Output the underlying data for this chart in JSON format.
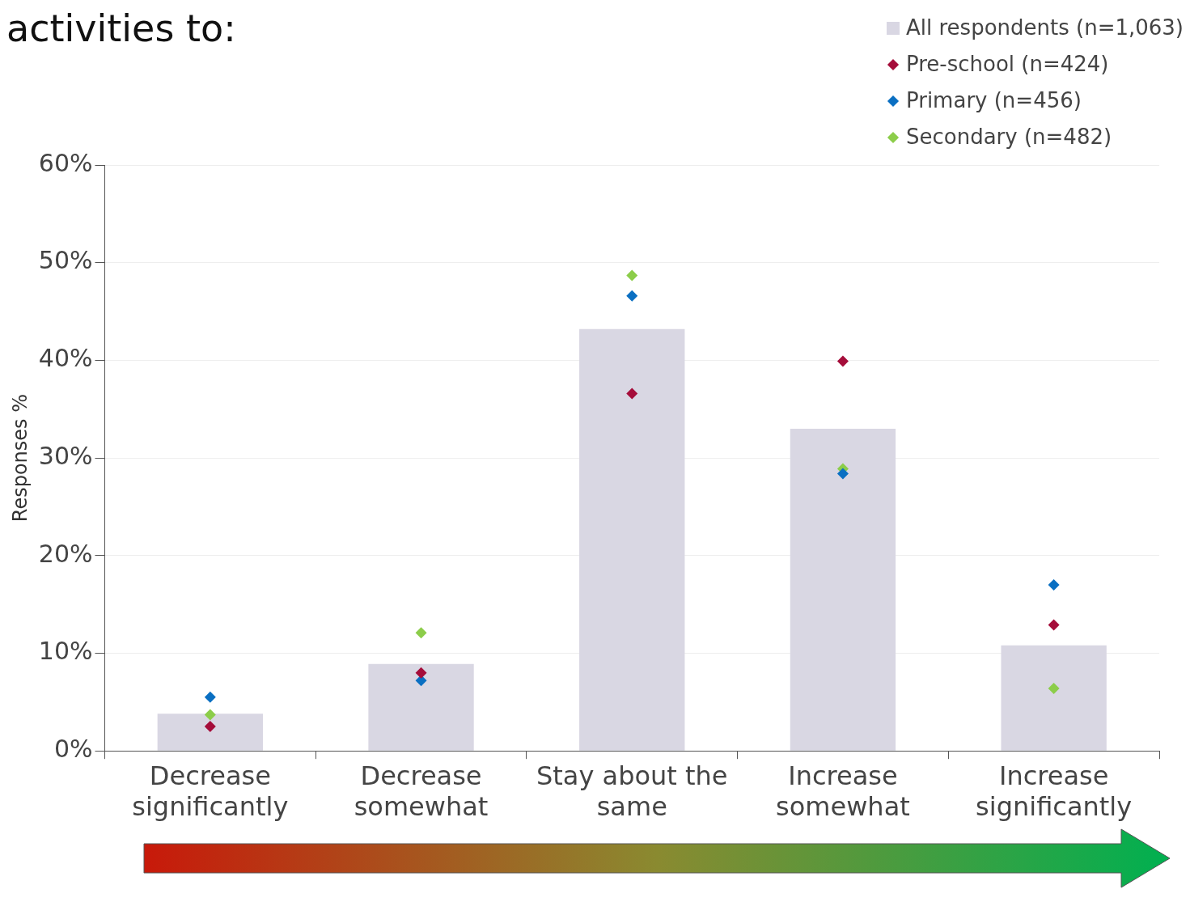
{
  "chart_data": {
    "type": "bar",
    "title": "activities to:",
    "ylabel": "Responses %",
    "categories": [
      "Decrease significantly",
      "Decrease somewhat",
      "Stay about the same",
      "Increase somewhat",
      "Increase significantly"
    ],
    "series": [
      {
        "name": "All respondents (n=1,063)",
        "color": "#d9d7e3",
        "values": [
          3.8,
          8.9,
          43.2,
          33.0,
          10.8
        ]
      },
      {
        "name": "Pre-school (n=424)",
        "type": "scatter",
        "color": "#a50d3a",
        "x": [
          "Decrease significantly",
          "Decrease somewhat",
          "Stay about the same",
          "Increase somewhat",
          "Increase significantly"
        ],
        "values": [
          2.5,
          8.0,
          36.6,
          39.9,
          12.9
        ]
      },
      {
        "name": "Primary (n=456)",
        "type": "scatter",
        "color": "#0a6fc2",
        "x": [
          "Decrease significantly",
          "Decrease somewhat",
          "Stay about the same",
          "Increase somewhat",
          "Increase significantly"
        ],
        "values": [
          5.5,
          7.2,
          46.6,
          28.4,
          17.0
        ]
      },
      {
        "name": "Secondary (n=482)",
        "type": "scatter",
        "color": "#8ccd4a",
        "x": [
          "Decrease significantly",
          "Decrease somewhat",
          "Stay about the same",
          "Increase somewhat",
          "Increase significantly"
        ],
        "values": [
          3.7,
          12.1,
          48.7,
          28.9,
          6.4
        ]
      }
    ],
    "ylim": [
      0,
      60
    ],
    "yticks": [
      {
        "value": 0,
        "label": "0%"
      },
      {
        "value": 10,
        "label": "10%"
      },
      {
        "value": 20,
        "label": "20%"
      },
      {
        "value": 30,
        "label": "30%"
      },
      {
        "value": 40,
        "label": "40%"
      },
      {
        "value": 50,
        "label": "50%"
      },
      {
        "value": 60,
        "label": "60%"
      }
    ],
    "grid": "y",
    "legend": "top right",
    "marker": "diamond"
  }
}
